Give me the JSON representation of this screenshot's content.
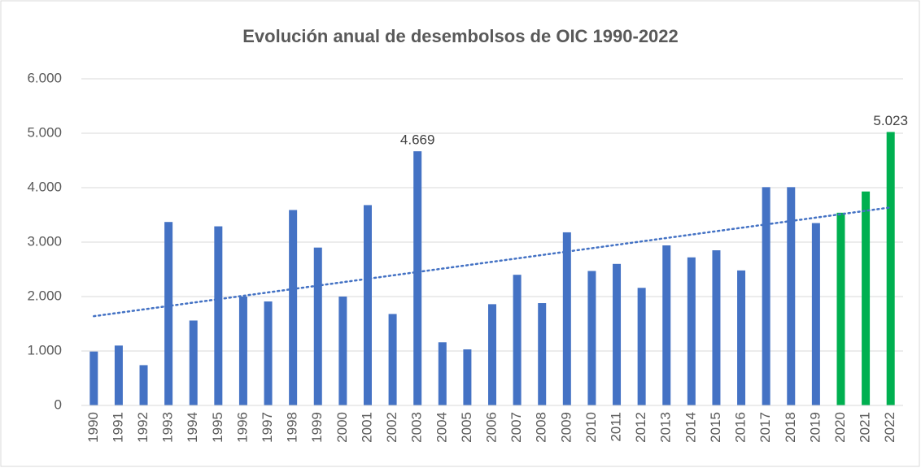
{
  "chart_data": {
    "type": "bar",
    "title": "Evolución anual de desembolsos de OIC 1990-2022",
    "categories": [
      "1990",
      "1991",
      "1992",
      "1993",
      "1994",
      "1995",
      "1996",
      "1997",
      "1998",
      "1999",
      "2000",
      "2001",
      "2002",
      "2003",
      "2004",
      "2005",
      "2006",
      "2007",
      "2008",
      "2009",
      "2010",
      "2011",
      "2012",
      "2013",
      "2014",
      "2015",
      "2016",
      "2017",
      "2018",
      "2019",
      "2020",
      "2021",
      "2022"
    ],
    "values": [
      990,
      1100,
      740,
      3370,
      1560,
      3290,
      2000,
      1910,
      3590,
      2900,
      2000,
      3680,
      1680,
      4669,
      1160,
      1030,
      1860,
      2400,
      1880,
      3180,
      2470,
      2600,
      2160,
      2940,
      2720,
      2850,
      2480,
      4010,
      4010,
      3350,
      3540,
      3930,
      5023
    ],
    "value_labels": [
      null,
      null,
      null,
      null,
      null,
      null,
      null,
      null,
      null,
      null,
      null,
      null,
      null,
      "4.669",
      null,
      null,
      null,
      null,
      null,
      null,
      null,
      null,
      null,
      null,
      null,
      null,
      null,
      null,
      null,
      null,
      null,
      null,
      "5.023"
    ],
    "colors": [
      "#4472c4",
      "#4472c4",
      "#4472c4",
      "#4472c4",
      "#4472c4",
      "#4472c4",
      "#4472c4",
      "#4472c4",
      "#4472c4",
      "#4472c4",
      "#4472c4",
      "#4472c4",
      "#4472c4",
      "#4472c4",
      "#4472c4",
      "#4472c4",
      "#4472c4",
      "#4472c4",
      "#4472c4",
      "#4472c4",
      "#4472c4",
      "#4472c4",
      "#4472c4",
      "#4472c4",
      "#4472c4",
      "#4472c4",
      "#4472c4",
      "#4472c4",
      "#4472c4",
      "#4472c4",
      "#00b050",
      "#00b050",
      "#00b050"
    ],
    "trendline": "linear",
    "trendline_color": "#4472c4",
    "ylim": [
      0,
      6000
    ],
    "yticks": [
      0,
      {
        "value": 1000,
        "label": "1.000"
      },
      {
        "value": 2000,
        "label": "2.000"
      },
      {
        "value": 3000,
        "label": "3.000"
      },
      {
        "value": 4000,
        "label": "4.000"
      },
      {
        "value": 5000,
        "label": "5.000"
      },
      {
        "value": 6000,
        "label": "6.000"
      }
    ],
    "grid": true
  }
}
